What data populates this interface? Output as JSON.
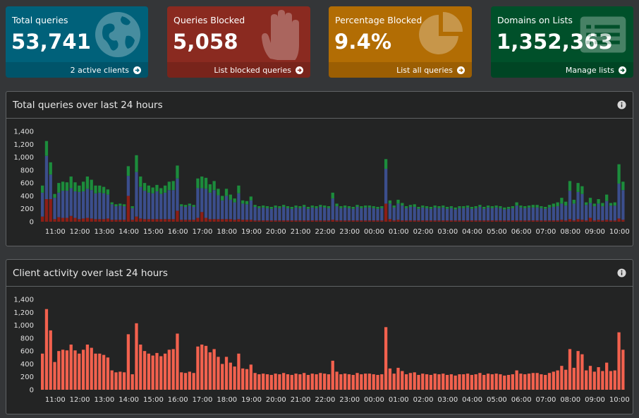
{
  "tiles": {
    "total": {
      "label": "Total queries",
      "value": "53,741",
      "link": "2 active clients",
      "icon": "globe-icon",
      "color": "#00617a"
    },
    "blocked": {
      "label": "Queries Blocked",
      "value": "5,058",
      "link": "List blocked queries",
      "icon": "hand-icon",
      "color": "#8a2a20"
    },
    "pct": {
      "label": "Percentage Blocked",
      "value": "9.4%",
      "link": "List all queries",
      "icon": "pie-chart-icon",
      "color": "#b26d04"
    },
    "domains": {
      "label": "Domains on Lists",
      "value": "1,352,363",
      "link": "Manage lists",
      "icon": "list-icon",
      "color": "#00502a"
    }
  },
  "panels": {
    "queries": {
      "title": "Total queries over last 24 hours"
    },
    "clients": {
      "title": "Client activity over last 24 hours"
    }
  },
  "chart_data": [
    {
      "type": "bar",
      "stacked": true,
      "ylim": [
        0,
        1400
      ],
      "yticks": [
        "0",
        "200",
        "400",
        "600",
        "800",
        "1,000",
        "1,200",
        "1,400"
      ],
      "xticks": [
        "11:00",
        "12:00",
        "13:00",
        "14:00",
        "15:00",
        "16:00",
        "17:00",
        "18:00",
        "19:00",
        "20:00",
        "21:00",
        "22:00",
        "23:00",
        "00:00",
        "01:00",
        "02:00",
        "03:00",
        "04:00",
        "05:00",
        "06:00",
        "07:00",
        "08:00",
        "09:00",
        "10:00"
      ],
      "colors": {
        "blocked": "#8c1e16",
        "permitted": "#3b4e8c",
        "cached": "#1c8c3c"
      },
      "total": [
        560,
        1250,
        920,
        430,
        600,
        620,
        610,
        700,
        610,
        560,
        620,
        700,
        650,
        560,
        560,
        540,
        500,
        300,
        270,
        280,
        270,
        860,
        240,
        1030,
        700,
        600,
        560,
        530,
        570,
        520,
        560,
        620,
        630,
        870,
        270,
        260,
        280,
        260,
        670,
        700,
        680,
        580,
        630,
        510,
        400,
        510,
        420,
        360,
        560,
        330,
        320,
        390,
        260,
        240,
        250,
        240,
        230,
        250,
        240,
        260,
        240,
        230,
        250,
        240,
        260,
        230,
        250,
        240,
        260,
        250,
        240,
        450,
        280,
        240,
        250,
        240,
        230,
        260,
        240,
        250,
        250,
        240,
        230,
        240,
        970,
        330,
        250,
        340,
        290,
        240,
        260,
        270,
        230,
        250,
        240,
        230,
        250,
        240,
        250,
        230,
        240,
        220,
        240,
        240,
        250,
        230,
        240,
        260,
        230,
        250,
        240,
        250,
        240,
        220,
        230,
        240,
        300,
        250,
        240,
        250,
        260,
        260,
        240,
        230,
        260,
        280,
        300,
        370,
        310,
        630,
        340,
        600,
        550,
        300,
        370,
        280,
        350,
        290,
        420,
        290,
        300,
        890,
        620
      ],
      "blocked": [
        80,
        350,
        350,
        40,
        70,
        60,
        60,
        90,
        60,
        40,
        50,
        60,
        50,
        40,
        40,
        40,
        50,
        30,
        30,
        30,
        30,
        400,
        30,
        80,
        50,
        40,
        40,
        40,
        40,
        40,
        40,
        40,
        40,
        170,
        30,
        30,
        30,
        30,
        60,
        150,
        60,
        40,
        40,
        40,
        40,
        40,
        40,
        30,
        40,
        30,
        30,
        30,
        20,
        20,
        20,
        20,
        20,
        20,
        20,
        20,
        20,
        20,
        20,
        20,
        20,
        20,
        20,
        20,
        20,
        20,
        20,
        30,
        20,
        20,
        20,
        20,
        20,
        20,
        20,
        20,
        20,
        20,
        20,
        20,
        280,
        40,
        20,
        30,
        20,
        20,
        20,
        20,
        20,
        20,
        20,
        20,
        20,
        20,
        20,
        20,
        20,
        20,
        20,
        20,
        20,
        20,
        20,
        20,
        20,
        20,
        20,
        20,
        20,
        20,
        20,
        20,
        20,
        20,
        20,
        20,
        20,
        20,
        20,
        20,
        20,
        20,
        20,
        30,
        20,
        40,
        20,
        40,
        30,
        20,
        60,
        20,
        30,
        20,
        30,
        20,
        20,
        50,
        30
      ],
      "cached": [
        110,
        230,
        190,
        60,
        150,
        140,
        130,
        180,
        140,
        100,
        150,
        190,
        160,
        120,
        110,
        100,
        80,
        30,
        30,
        30,
        30,
        150,
        30,
        260,
        160,
        120,
        110,
        90,
        100,
        90,
        110,
        130,
        140,
        200,
        30,
        30,
        30,
        30,
        150,
        180,
        170,
        130,
        140,
        100,
        70,
        110,
        80,
        60,
        120,
        50,
        50,
        60,
        30,
        30,
        30,
        30,
        30,
        30,
        30,
        30,
        30,
        30,
        30,
        30,
        30,
        30,
        30,
        30,
        30,
        30,
        30,
        90,
        40,
        30,
        30,
        30,
        30,
        30,
        30,
        30,
        30,
        30,
        30,
        30,
        150,
        50,
        30,
        60,
        40,
        30,
        30,
        40,
        30,
        30,
        30,
        30,
        30,
        30,
        30,
        30,
        30,
        30,
        30,
        30,
        30,
        30,
        30,
        30,
        30,
        30,
        30,
        30,
        30,
        30,
        30,
        30,
        50,
        30,
        30,
        30,
        40,
        40,
        30,
        30,
        40,
        50,
        60,
        90,
        60,
        150,
        60,
        140,
        120,
        40,
        80,
        40,
        70,
        50,
        100,
        40,
        50,
        300,
        130
      ]
    },
    {
      "type": "bar",
      "ylim": [
        0,
        1400
      ],
      "yticks": [
        "0",
        "200",
        "400",
        "600",
        "800",
        "1,000",
        "1,200",
        "1,400"
      ],
      "xticks": [
        "11:00",
        "12:00",
        "13:00",
        "14:00",
        "15:00",
        "16:00",
        "17:00",
        "18:00",
        "19:00",
        "20:00",
        "21:00",
        "22:00",
        "23:00",
        "00:00",
        "01:00",
        "02:00",
        "03:00",
        "04:00",
        "05:00",
        "06:00",
        "07:00",
        "08:00",
        "09:00",
        "10:00"
      ],
      "color": "#f2614e",
      "values": [
        560,
        1250,
        920,
        430,
        600,
        620,
        610,
        700,
        610,
        560,
        620,
        700,
        650,
        560,
        560,
        540,
        500,
        300,
        270,
        280,
        270,
        860,
        240,
        1030,
        700,
        600,
        560,
        530,
        570,
        520,
        560,
        620,
        630,
        870,
        270,
        260,
        280,
        260,
        670,
        700,
        680,
        580,
        630,
        510,
        400,
        510,
        420,
        360,
        560,
        330,
        320,
        390,
        260,
        240,
        250,
        240,
        230,
        250,
        240,
        260,
        240,
        230,
        250,
        240,
        260,
        230,
        250,
        240,
        260,
        250,
        240,
        450,
        280,
        240,
        250,
        240,
        230,
        260,
        240,
        250,
        250,
        240,
        230,
        240,
        970,
        330,
        250,
        340,
        290,
        240,
        260,
        270,
        230,
        250,
        240,
        230,
        250,
        240,
        250,
        230,
        240,
        220,
        240,
        240,
        250,
        230,
        240,
        260,
        230,
        250,
        240,
        250,
        240,
        220,
        230,
        240,
        300,
        250,
        240,
        250,
        260,
        260,
        240,
        230,
        260,
        280,
        300,
        370,
        310,
        630,
        340,
        600,
        550,
        300,
        370,
        280,
        350,
        290,
        420,
        290,
        300,
        890,
        620
      ]
    }
  ]
}
